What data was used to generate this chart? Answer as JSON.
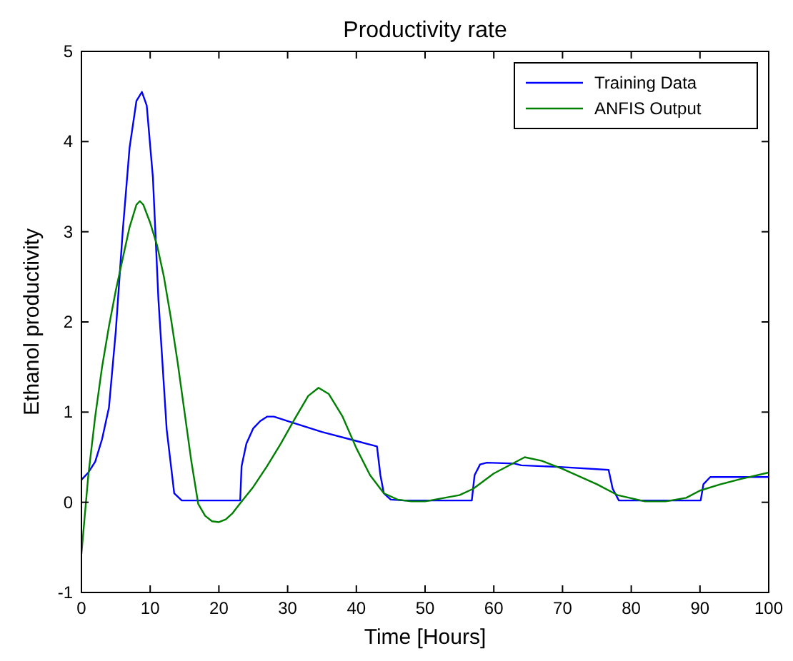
{
  "chart_data": {
    "type": "line",
    "title": "Productivity rate",
    "xlabel": "Time [Hours]",
    "ylabel": "Ethanol productivity",
    "xlim": [
      0,
      100
    ],
    "ylim": [
      -1,
      5
    ],
    "xticks": [
      0,
      10,
      20,
      30,
      40,
      50,
      60,
      70,
      80,
      90,
      100
    ],
    "yticks": [
      -1,
      0,
      1,
      2,
      3,
      4,
      5
    ],
    "grid": false,
    "legend": "top right",
    "line_style": "solid",
    "marker": "none",
    "series": [
      {
        "name": "Training Data",
        "color": "#0000ff",
        "x": [
          0,
          1,
          2,
          3,
          4,
          5,
          6,
          7,
          8,
          8.8,
          9.5,
          10.4,
          11.2,
          12.4,
          13.5,
          14.6,
          23.1,
          23.3,
          24,
          25,
          26,
          27,
          28,
          30,
          35,
          40,
          43,
          43.5,
          44,
          45,
          47,
          56.8,
          57.2,
          58,
          59,
          63,
          64,
          70,
          76.7,
          77.3,
          78.2,
          90.1,
          90.5,
          91.5,
          100
        ],
        "values": [
          0.25,
          0.33,
          0.45,
          0.7,
          1.05,
          1.9,
          3.0,
          3.93,
          4.45,
          4.55,
          4.4,
          3.6,
          2.25,
          0.81,
          0.1,
          0.02,
          0.02,
          0.4,
          0.65,
          0.82,
          0.9,
          0.95,
          0.95,
          0.9,
          0.78,
          0.68,
          0.62,
          0.3,
          0.1,
          0.03,
          0.02,
          0.02,
          0.3,
          0.42,
          0.44,
          0.43,
          0.41,
          0.39,
          0.36,
          0.15,
          0.02,
          0.02,
          0.2,
          0.28,
          0.28
        ]
      },
      {
        "name": "ANFIS Output",
        "color": "#008000",
        "x": [
          0,
          1,
          2,
          3,
          4,
          5,
          6,
          7,
          8,
          8.5,
          9,
          10,
          11,
          12,
          13,
          14,
          15,
          16,
          17,
          18,
          19,
          20,
          21,
          22,
          23,
          25,
          27,
          29,
          31,
          33,
          34.5,
          36,
          38,
          40,
          42,
          44,
          46,
          48,
          50,
          55,
          57,
          60,
          64.5,
          67,
          70,
          75,
          78,
          82,
          85,
          88,
          90,
          93,
          96,
          100
        ],
        "values": [
          -0.57,
          0.3,
          0.95,
          1.5,
          1.95,
          2.35,
          2.7,
          3.05,
          3.3,
          3.34,
          3.3,
          3.1,
          2.85,
          2.5,
          2.05,
          1.55,
          1.0,
          0.45,
          -0.02,
          -0.15,
          -0.21,
          -0.22,
          -0.19,
          -0.12,
          -0.02,
          0.17,
          0.4,
          0.65,
          0.92,
          1.18,
          1.27,
          1.2,
          0.95,
          0.6,
          0.3,
          0.1,
          0.03,
          0.01,
          0.01,
          0.08,
          0.15,
          0.32,
          0.5,
          0.46,
          0.37,
          0.2,
          0.08,
          0.01,
          0.01,
          0.05,
          0.13,
          0.2,
          0.26,
          0.33
        ]
      }
    ]
  }
}
